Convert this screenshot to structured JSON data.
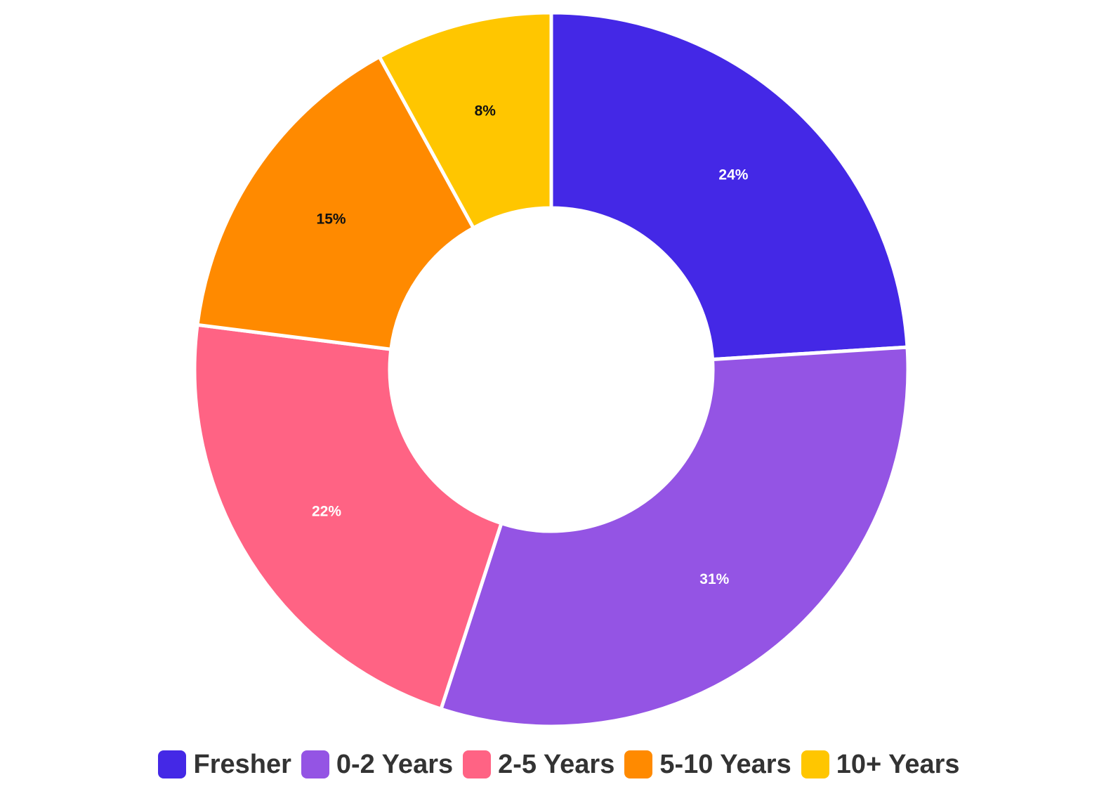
{
  "chart_data": {
    "type": "pie",
    "variant": "donut",
    "categories": [
      "Fresher",
      "0-2 Years",
      "2-5 Years",
      "5-10 Years",
      "10+ Years"
    ],
    "values": [
      24,
      31,
      22,
      15,
      8
    ],
    "value_labels": [
      "24%",
      "31%",
      "22%",
      "15%",
      "8%"
    ],
    "colors": [
      "#4428e6",
      "#9454e4",
      "#ff6384",
      "#ff8a00",
      "#ffc600"
    ],
    "label_colors": [
      "#ffffff",
      "#ffffff",
      "#ffffff",
      "#111111",
      "#111111"
    ],
    "legend_placement": "bottom"
  },
  "legend": {
    "items": [
      {
        "label": "Fresher",
        "color": "#4428e6"
      },
      {
        "label": "0-2 Years",
        "color": "#9454e4"
      },
      {
        "label": "2-5 Years",
        "color": "#ff6384"
      },
      {
        "label": "5-10 Years",
        "color": "#ff8a00"
      },
      {
        "label": "10+ Years",
        "color": "#ffc600"
      }
    ]
  }
}
